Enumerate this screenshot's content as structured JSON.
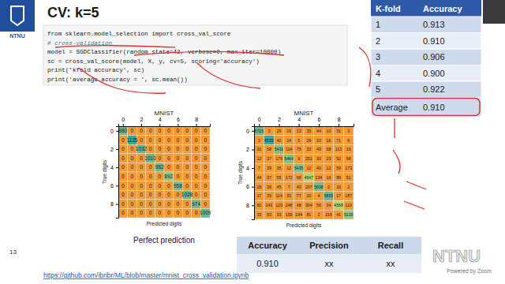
{
  "slide": {
    "title": "CV: k=5",
    "logo": "NTNU",
    "number": "13",
    "url": "https://github.com/ibribr/ML/blob/master/mnist_cross_validation.ipynb",
    "code": [
      "from sklearn.model_selection import cross_val_score",
      "# cross-validation",
      "model = SGDClassifier(random_state=42, verbose=0, max_iter=10000)",
      "sc = cross_val_score(model, X, y, cv=5, scoring='accuracy')",
      "print('kfold accuracy', sc)",
      "print('average accuracy = ', sc.mean())"
    ]
  },
  "kfold_table": {
    "header": [
      "K-fold",
      "Accuracy"
    ],
    "rows": [
      [
        "1",
        "0.913"
      ],
      [
        "2",
        "0.910"
      ],
      [
        "3",
        "0.906"
      ],
      [
        "4",
        "0.900"
      ],
      [
        "5",
        "0.922"
      ]
    ],
    "footer": [
      "Average",
      "0.910"
    ]
  },
  "metrics_table": {
    "header": [
      "Accuracy",
      "Precision",
      "Recall"
    ],
    "row": [
      "0.910",
      "xx",
      "xx"
    ]
  },
  "zoom": {
    "watermark": "NTNU",
    "powered": "Powered by Zoom"
  },
  "chart_data": [
    {
      "type": "heatmap",
      "title": "MNIST",
      "x_label": "Predicted digits",
      "y_label": "True digits",
      "annotation": "Perfect prediction",
      "xlim": [
        -0.5,
        9.5
      ],
      "ylim": [
        -0.5,
        9.5
      ],
      "xticks": [
        0,
        2,
        4,
        6,
        8
      ],
      "yticks": [
        0,
        2,
        4,
        6,
        8
      ],
      "data_labels": true,
      "cells": [
        [
          980,
          0,
          0,
          0,
          0,
          0,
          0,
          0,
          0,
          0
        ],
        [
          0,
          1135,
          0,
          0,
          0,
          0,
          0,
          0,
          0,
          0
        ],
        [
          0,
          0,
          1032,
          0,
          0,
          0,
          0,
          0,
          0,
          0
        ],
        [
          0,
          0,
          0,
          1010,
          0,
          0,
          0,
          0,
          0,
          0
        ],
        [
          0,
          0,
          0,
          0,
          982,
          0,
          0,
          0,
          0,
          0
        ],
        [
          0,
          0,
          0,
          0,
          0,
          892,
          0,
          0,
          0,
          0
        ],
        [
          0,
          0,
          0,
          0,
          0,
          0,
          958,
          0,
          0,
          0
        ],
        [
          0,
          0,
          0,
          0,
          0,
          0,
          0,
          1028,
          0,
          0
        ],
        [
          0,
          0,
          0,
          0,
          0,
          0,
          0,
          0,
          974,
          0
        ],
        [
          0,
          0,
          0,
          0,
          0,
          0,
          0,
          0,
          0,
          1009
        ]
      ]
    },
    {
      "type": "heatmap",
      "title": "MNIST",
      "x_label": "Predicted digits",
      "y_label": "True digits",
      "xlim": [
        -0.5,
        9.5
      ],
      "ylim": [
        -0.5,
        9.5
      ],
      "xticks": [
        0,
        2,
        4,
        6,
        8
      ],
      "yticks": [
        0,
        2,
        4,
        6,
        8
      ],
      "data_labels": true,
      "cells": [
        [
          5723,
          3,
          26,
          16,
          13,
          35,
          44,
          10,
          31,
          3
        ],
        [
          3,
          6535,
          40,
          14,
          5,
          29,
          10,
          16,
          71,
          6
        ],
        [
          31,
          58,
          5431,
          114,
          75,
          33,
          49,
          68,
          113,
          16
        ],
        [
          12,
          37,
          176,
          5464,
          9,
          251,
          30,
          23,
          52,
          68
        ],
        [
          7,
          39,
          35,
          12,
          5435,
          12,
          40,
          12,
          59,
          173
        ],
        [
          44,
          37,
          55,
          172,
          68,
          4647,
          134,
          16,
          89,
          51
        ],
        [
          29,
          36,
          45,
          7,
          40,
          207,
          5608,
          2,
          10,
          2
        ],
        [
          17,
          39,
          114,
          33,
          77,
          20,
          4,
          5835,
          17,
          187
        ],
        [
          60,
          243,
          120,
          248,
          48,
          304,
          56,
          34,
          4568,
          110
        ],
        [
          33,
          53,
          33,
          155,
          244,
          81,
          2,
          216,
          41,
          5100
        ]
      ]
    }
  ]
}
